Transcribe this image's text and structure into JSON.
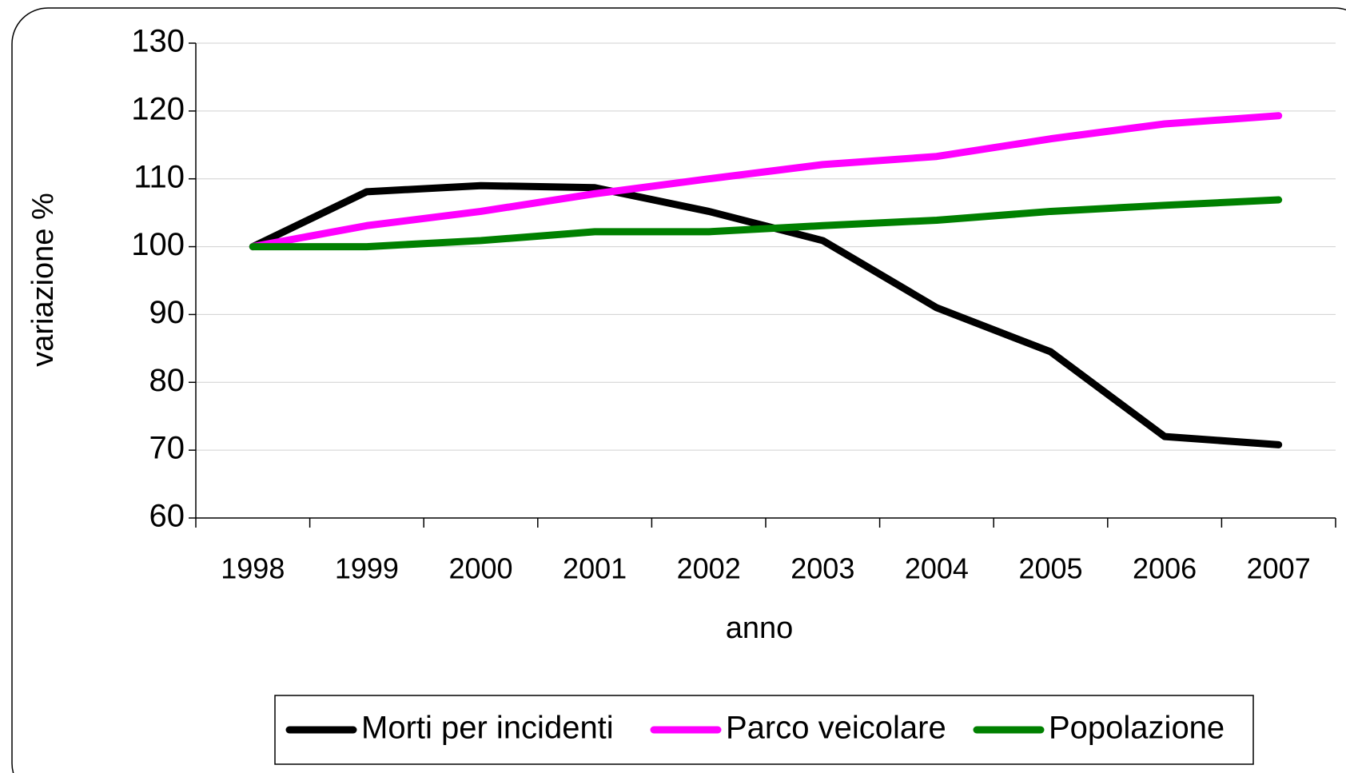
{
  "chart_data": {
    "type": "line",
    "xlabel": "anno",
    "ylabel": "variazione %",
    "categories": [
      "1998",
      "1999",
      "2000",
      "2001",
      "2002",
      "2003",
      "2004",
      "2005",
      "2006",
      "2007"
    ],
    "series": [
      {
        "name": "Morti per incidenti",
        "color": "#000000",
        "values": [
          100,
          108.1,
          109,
          108.7,
          105.2,
          100.9,
          91,
          84.5,
          72,
          70.8
        ]
      },
      {
        "name": "Parco veicolare",
        "color": "#ff00ff",
        "values": [
          100,
          103.1,
          105.2,
          107.8,
          110,
          112.1,
          113.3,
          115.9,
          118.1,
          119.3
        ]
      },
      {
        "name": "Popolazione",
        "color": "#008000",
        "values": [
          100,
          100,
          100.9,
          102.2,
          102.2,
          103.1,
          103.9,
          105.2,
          106.1,
          106.9
        ]
      }
    ],
    "ylim": [
      60,
      130
    ],
    "yticks": [
      60,
      70,
      80,
      90,
      100,
      110,
      120,
      130
    ],
    "grid": true,
    "legend": "bottom"
  }
}
